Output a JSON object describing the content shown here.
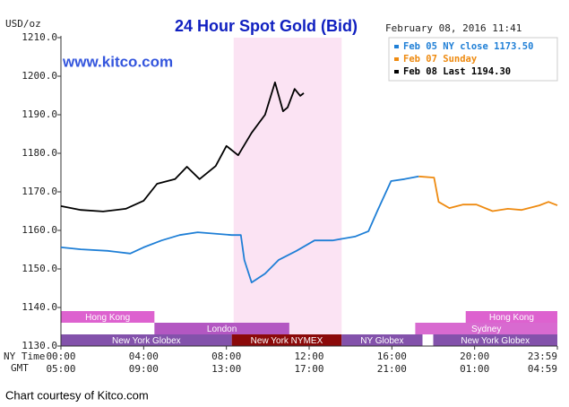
{
  "chart_data": {
    "type": "line",
    "title": "24 Hour Spot Gold (Bid)",
    "y_unit": "USD/oz",
    "timestamp": "February 08, 2016 11:41",
    "watermark": "www.kitco.com",
    "credit": "Chart courtesy of Kitco.com",
    "x_row_labels": [
      "NY Time",
      "GMT"
    ],
    "xlim": [
      0,
      24
    ],
    "ylim": [
      1130,
      1210
    ],
    "yticks": [
      {
        "value": 1130,
        "label": "1130.0"
      },
      {
        "value": 1140,
        "label": "1140.0"
      },
      {
        "value": 1150,
        "label": "1150.0"
      },
      {
        "value": 1160,
        "label": "1160.0"
      },
      {
        "value": 1170,
        "label": "1170.0"
      },
      {
        "value": 1180,
        "label": "1180.0"
      },
      {
        "value": 1190,
        "label": "1190.0"
      },
      {
        "value": 1200,
        "label": "1200.0"
      },
      {
        "value": 1210,
        "label": "1210.0"
      }
    ],
    "xticks": [
      {
        "value": 0,
        "label": "00:00"
      },
      {
        "value": 4,
        "label": "04:00"
      },
      {
        "value": 8,
        "label": "08:00"
      },
      {
        "value": 12,
        "label": "12:00"
      },
      {
        "value": 16,
        "label": "16:00"
      },
      {
        "value": 20,
        "label": "20:00"
      },
      {
        "value": 24,
        "label": "23:59"
      }
    ],
    "gmt_ticks": [
      {
        "value": 0,
        "label": "05:00"
      },
      {
        "value": 4,
        "label": "09:00"
      },
      {
        "value": 8,
        "label": "13:00"
      },
      {
        "value": 12,
        "label": "17:00"
      },
      {
        "value": 16,
        "label": "21:00"
      },
      {
        "value": 20,
        "label": "01:00"
      },
      {
        "value": 24,
        "label": "04:59"
      }
    ],
    "highlight_band": {
      "color": "#fbe3f3",
      "range": [
        8.35,
        13.57
      ]
    },
    "series": [
      {
        "name": "Feb 05 NY close 1173.50",
        "color": "#1f7fd6",
        "x": [
          0,
          0.96,
          2.26,
          3.35,
          4.0,
          4.87,
          5.74,
          6.61,
          8.26,
          8.7,
          8.87,
          9.22,
          9.87,
          10.52,
          11.39,
          12.26,
          13.13,
          14.22,
          14.87,
          15.3,
          15.96,
          16.61,
          17.3
        ],
        "values": [
          1155.6,
          1155.1,
          1154.7,
          1154.0,
          1155.6,
          1157.4,
          1158.8,
          1159.5,
          1158.8,
          1158.8,
          1152.3,
          1146.5,
          1148.8,
          1152.3,
          1154.7,
          1157.4,
          1157.4,
          1158.4,
          1159.8,
          1165.1,
          1172.8,
          1173.3,
          1174.0
        ]
      },
      {
        "name": "Feb 07 Sunday",
        "color": "#ee8a10",
        "x": [
          17.3,
          18.04,
          18.26,
          18.78,
          19.43,
          20.09,
          20.87,
          21.61,
          22.26,
          23.13,
          23.57,
          24.0
        ],
        "values": [
          1174.0,
          1173.7,
          1167.4,
          1165.8,
          1166.7,
          1166.7,
          1165.0,
          1165.6,
          1165.3,
          1166.5,
          1167.4,
          1166.5
        ]
      },
      {
        "name": "Feb 08 Last 1194.30",
        "color": "#000000",
        "x": [
          0,
          0.96,
          2.04,
          3.13,
          4.0,
          4.65,
          5.52,
          6.09,
          6.7,
          7.48,
          8.0,
          8.57,
          9.22,
          9.87,
          10.35,
          10.74,
          10.96,
          11.3,
          11.57,
          11.74
        ],
        "values": [
          1166.3,
          1165.3,
          1164.9,
          1165.6,
          1167.7,
          1172.1,
          1173.3,
          1176.5,
          1173.3,
          1176.7,
          1181.9,
          1179.5,
          1185.3,
          1190.0,
          1198.4,
          1190.9,
          1191.9,
          1196.7,
          1194.9,
          1195.6
        ]
      }
    ],
    "session_rows": [
      [
        {
          "label": "Hong Kong",
          "start": 0,
          "end": 4.52,
          "color": "#dd62cf"
        },
        {
          "label": "Hong Kong",
          "start": 19.57,
          "end": 24,
          "color": "#dd62cf"
        }
      ],
      [
        {
          "label": "London",
          "start": 4.52,
          "end": 11.04,
          "color": "#b357c2"
        },
        {
          "label": "Sydney",
          "start": 17.13,
          "end": 24,
          "color": "#d86ad0"
        }
      ],
      [
        {
          "label": "New York Globex",
          "start": 0,
          "end": 8.26,
          "color": "#8352ab"
        },
        {
          "label": "New York NYMEX",
          "start": 8.26,
          "end": 13.57,
          "color": "#8b0a0a"
        },
        {
          "label": "NY Globex",
          "start": 13.57,
          "end": 17.48,
          "color": "#8352ab"
        },
        {
          "label": "New York Globex",
          "start": 18.0,
          "end": 24,
          "color": "#8352ab"
        }
      ]
    ]
  }
}
